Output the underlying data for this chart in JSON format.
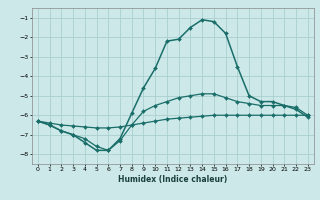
{
  "title": "",
  "xlabel": "Humidex (Indice chaleur)",
  "ylabel": "",
  "background_color": "#cce8e8",
  "grid_color": "#aacfcf",
  "line_color": "#1a6e6a",
  "xlim": [
    -0.5,
    23.5
  ],
  "ylim": [
    -8.5,
    -0.5
  ],
  "yticks": [
    -1,
    -2,
    -3,
    -4,
    -5,
    -6,
    -7,
    -8
  ],
  "xticks": [
    0,
    1,
    2,
    3,
    4,
    5,
    6,
    7,
    8,
    9,
    10,
    11,
    12,
    13,
    14,
    15,
    16,
    17,
    18,
    19,
    20,
    21,
    22,
    23
  ],
  "series": [
    {
      "y": [
        -6.3,
        -6.4,
        -6.5,
        -6.55,
        -6.6,
        -6.65,
        -6.65,
        -6.6,
        -6.5,
        -6.4,
        -6.3,
        -6.2,
        -6.15,
        -6.1,
        -6.05,
        -6.0,
        -6.0,
        -6.0,
        -6.0,
        -6.0,
        -6.0,
        -6.0,
        -6.0,
        -6.0
      ],
      "marker": true,
      "lw": 0.9
    },
    {
      "y": [
        -6.3,
        -6.5,
        -6.8,
        -7.0,
        -7.2,
        -7.6,
        -7.8,
        -7.3,
        -6.5,
        -5.8,
        -5.5,
        -5.3,
        -5.1,
        -5.0,
        -4.9,
        -4.9,
        -5.1,
        -5.3,
        -5.4,
        -5.5,
        -5.5,
        -5.5,
        -5.6,
        -6.0
      ],
      "marker": true,
      "lw": 0.9
    },
    {
      "y": [
        -6.3,
        -6.5,
        -6.8,
        -7.0,
        -7.4,
        -7.8,
        -7.8,
        -7.2,
        -5.9,
        -4.6,
        -3.6,
        -2.2,
        -2.1,
        -1.5,
        -1.1,
        -1.2,
        -1.8,
        -3.5,
        -5.0,
        -5.3,
        -5.3,
        -5.5,
        -5.7,
        -6.1
      ],
      "marker": true,
      "lw": 1.1
    }
  ]
}
